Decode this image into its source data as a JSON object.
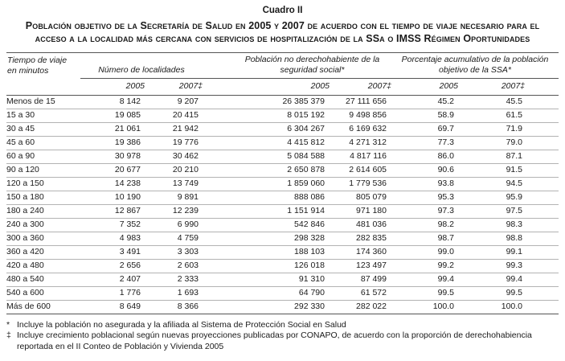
{
  "title": "Cuadro II",
  "subtitle": "Población objetivo de la Secretaría de Salud en 2005 y 2007 de acuerdo con el tiempo de viaje necesario para el acceso a la localidad más cercana con servicios de hospitalización de la SSa o IMSS Régimen Oportunidades",
  "table": {
    "col1_header": "Tiempo de viaje en minutos",
    "groups": [
      {
        "label": "Número de localidades",
        "years": [
          "2005",
          "2007‡"
        ]
      },
      {
        "label": "Población no derechohabiente de la seguridad social*",
        "years": [
          "2005",
          "2007‡"
        ]
      },
      {
        "label": "Porcentaje acumulativo de la población objetivo de la SSA*",
        "years": [
          "2005",
          "2007‡"
        ]
      }
    ],
    "rows": [
      {
        "label": "Menos de 15",
        "values": [
          "8 142",
          "9 207",
          "26 385 379",
          "27 111 656",
          "45.2",
          "45.5"
        ]
      },
      {
        "label": "15 a 30",
        "values": [
          "19 085",
          "20 415",
          "8 015 192",
          "9 498 856",
          "58.9",
          "61.5"
        ]
      },
      {
        "label": "30 a 45",
        "values": [
          "21 061",
          "21 942",
          "6 304 267",
          "6 169 632",
          "69.7",
          "71.9"
        ]
      },
      {
        "label": "45 a 60",
        "values": [
          "19 386",
          "19 776",
          "4 415 812",
          "4 271 312",
          "77.3",
          "79.0"
        ]
      },
      {
        "label": "60 a 90",
        "values": [
          "30 978",
          "30 462",
          "5 084 588",
          "4 817 116",
          "86.0",
          "87.1"
        ]
      },
      {
        "label": "90 a 120",
        "values": [
          "20 677",
          "20 210",
          "2 650 878",
          "2 614 605",
          "90.6",
          "91.5"
        ]
      },
      {
        "label": "120 a 150",
        "values": [
          "14 238",
          "13 749",
          "1 859 060",
          "1 779 536",
          "93.8",
          "94.5"
        ]
      },
      {
        "label": "150 a 180",
        "values": [
          "10 190",
          "9 891",
          "888 086",
          "805 079",
          "95.3",
          "95.9"
        ]
      },
      {
        "label": "180 a 240",
        "values": [
          "12 867",
          "12 239",
          "1 151 914",
          "971 180",
          "97.3",
          "97.5"
        ]
      },
      {
        "label": "240 a 300",
        "values": [
          "7 352",
          "6 990",
          "542 846",
          "481 036",
          "98.2",
          "98.3"
        ]
      },
      {
        "label": "300 a 360",
        "values": [
          "4 983",
          "4 759",
          "298 328",
          "282 835",
          "98.7",
          "98.8"
        ]
      },
      {
        "label": "360 a 420",
        "values": [
          "3 491",
          "3 303",
          "188 103",
          "174 360",
          "99.0",
          "99.1"
        ]
      },
      {
        "label": "420 a 480",
        "values": [
          "2 656",
          "2 603",
          "126 018",
          "123 497",
          "99.2",
          "99.3"
        ]
      },
      {
        "label": "480 a 540",
        "values": [
          "2 407",
          "2 333",
          "91 310",
          "87 499",
          "99.4",
          "99.4"
        ]
      },
      {
        "label": "540 a 600",
        "values": [
          "1 776",
          "1 693",
          "64 790",
          "61 572",
          "99.5",
          "99.5"
        ]
      },
      {
        "label": "Más de 600",
        "values": [
          "8 649",
          "8 366",
          "292 330",
          "282 022",
          "100.0",
          "100.0"
        ]
      }
    ]
  },
  "footnotes": [
    {
      "marker": "*",
      "text": "Incluye la población no asegurada y la afiliada al Sistema de Protección Social en Salud"
    },
    {
      "marker": "‡",
      "text": "Incluye crecimiento poblacional según nuevas proyecciones publicadas por CONAPO, de acuerdo con la proporción de derechohabiencia reportada en el II Conteo de Población y Vivienda 2005"
    }
  ]
}
